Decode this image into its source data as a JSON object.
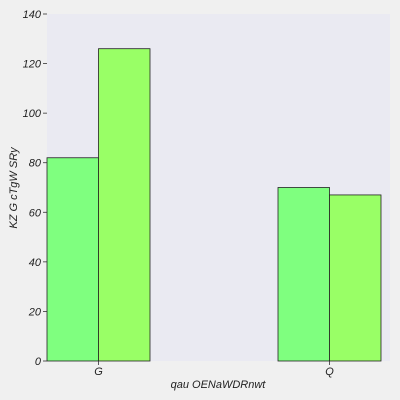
{
  "chart_data": {
    "type": "bar",
    "title": "",
    "xlabel": "qau OENaWDRnwt",
    "ylabel": "KZ G cTgW SRy",
    "categories": [
      "G",
      "Q"
    ],
    "series": [
      {
        "values": [
          82,
          70
        ],
        "color": "#7fff7f"
      },
      {
        "values": [
          126,
          67
        ],
        "color": "#99ff66"
      }
    ],
    "ylim": [
      0,
      140
    ],
    "yticks": [
      0,
      20,
      40,
      60,
      80,
      100,
      120,
      140
    ],
    "grid": false,
    "plot_background": "#eaeaf2",
    "page_background": "#f0f0f0",
    "bar_edge_color": "#222222"
  }
}
